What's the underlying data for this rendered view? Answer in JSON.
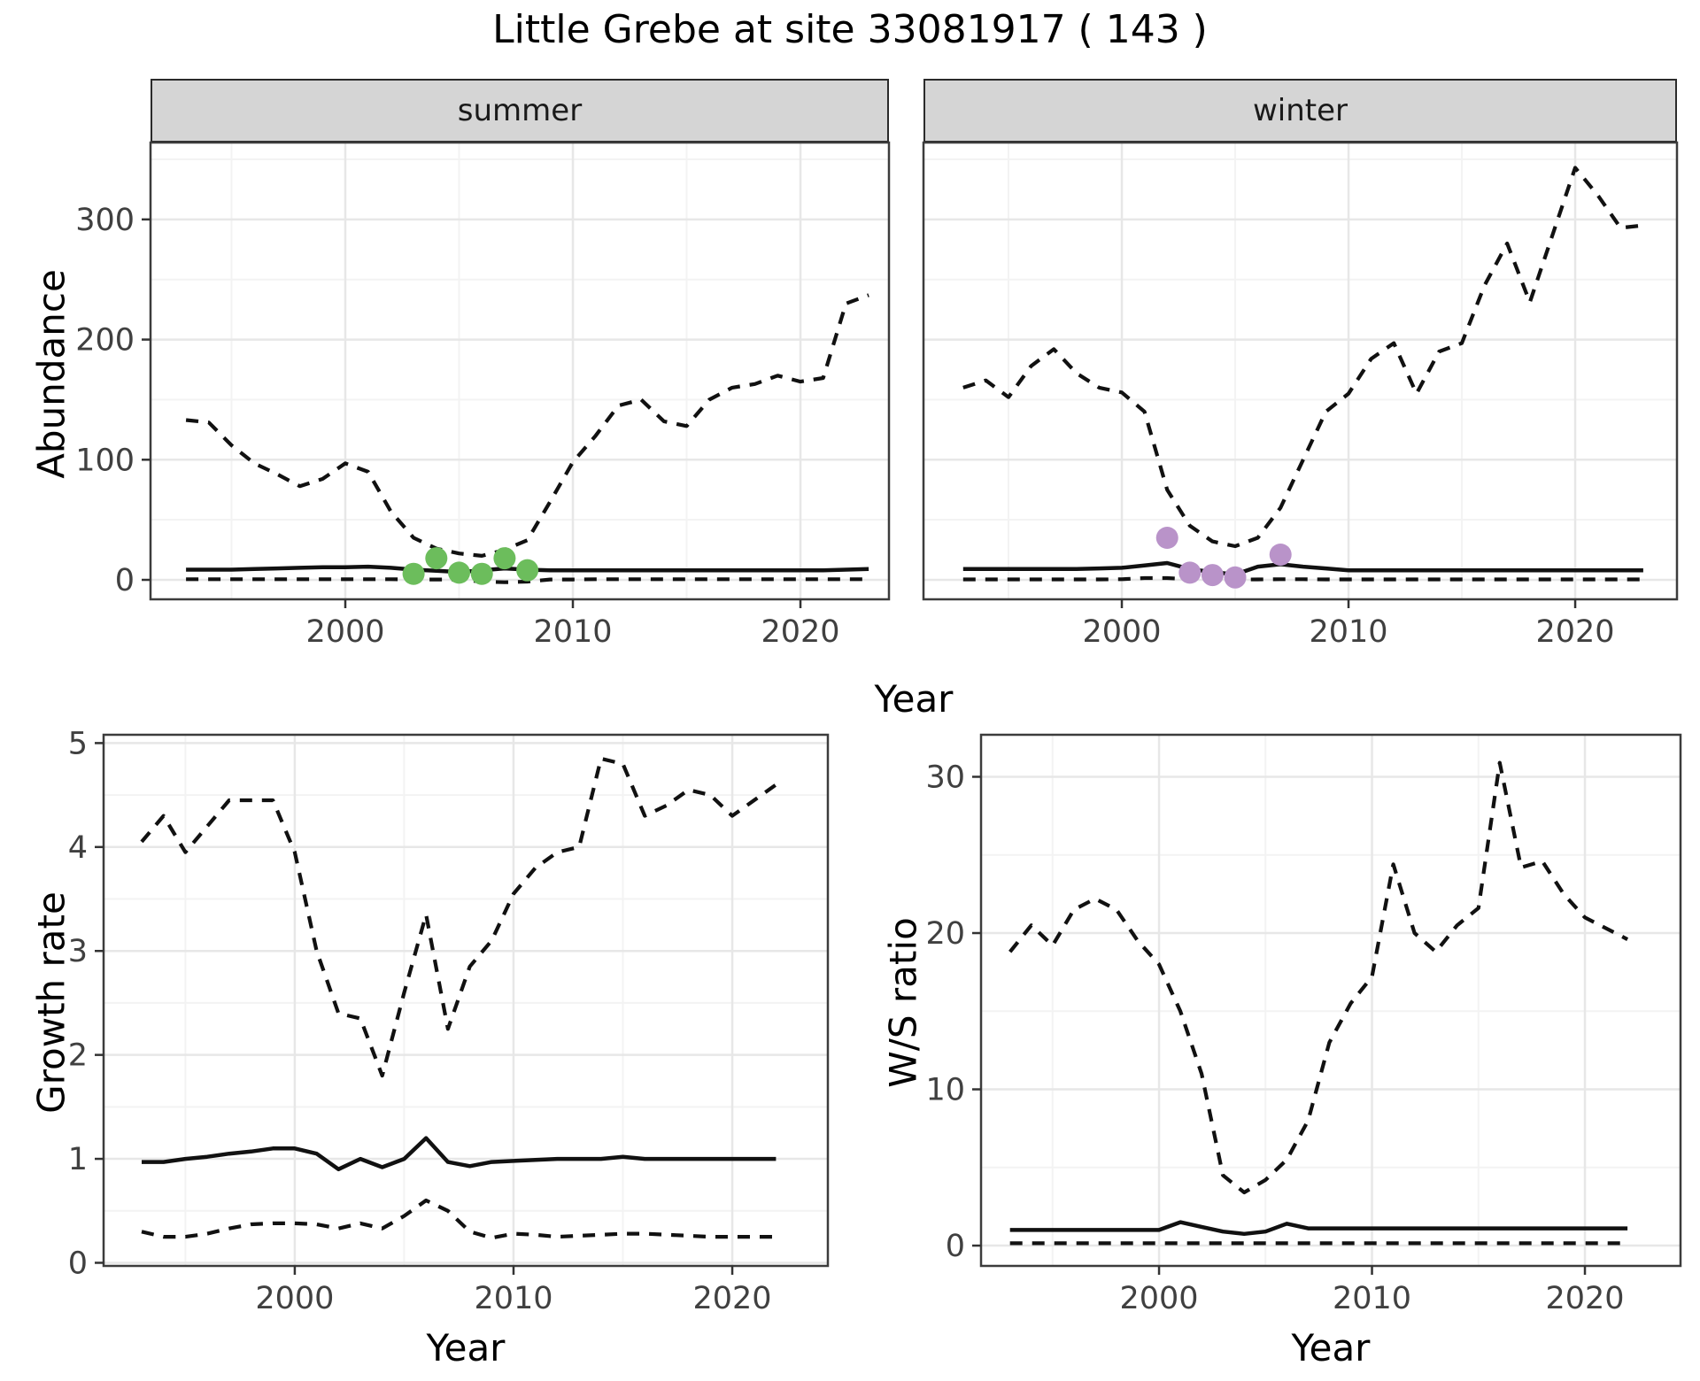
{
  "title": "Little Grebe at site 33081917 ( 143 )",
  "labels": {
    "abundance": "Abundance",
    "growth_rate": "Growth rate",
    "ws_ratio": "W/S ratio",
    "year": "Year"
  },
  "colors": {
    "line": "#111111",
    "summer_points": "#6cbd5c",
    "winter_points": "#b993c9",
    "grid_major": "#e7e7e7",
    "grid_minor": "#f3f3f3",
    "strip_fill": "#d5d5d5",
    "panel_border": "#3c3c3c",
    "tick_text": "#404040"
  },
  "chart_data": [
    {
      "id": "summer",
      "type": "line",
      "facet_label": "summer",
      "xlabel": "Year",
      "ylabel": "Abundance",
      "xlim": [
        1991.44,
        2023.89
      ],
      "ylim": [
        -16.2,
        364.0
      ],
      "xticks": {
        "major": [
          2000,
          2010,
          2020
        ],
        "minor": [
          1995,
          2005,
          2015
        ],
        "labels": [
          "2000",
          "2010",
          "2020"
        ]
      },
      "yticks": {
        "major": [
          0,
          100,
          200,
          300
        ],
        "minor": [
          50,
          150,
          250,
          350
        ],
        "labels": [
          "0",
          "100",
          "200",
          "300"
        ],
        "show_labels": true
      },
      "x": [
        1993,
        1994,
        1995,
        1996,
        1997,
        1998,
        1999,
        2000,
        2001,
        2002,
        2003,
        2004,
        2005,
        2006,
        2007,
        2008,
        2009,
        2010,
        2011,
        2012,
        2013,
        2014,
        2015,
        2016,
        2017,
        2018,
        2019,
        2020,
        2021,
        2022,
        2023
      ],
      "series": [
        {
          "name": "upper_ci",
          "linetype": "dashed",
          "values": [
            133,
            131,
            112,
            97,
            88,
            78,
            84,
            97,
            90,
            57,
            35,
            26,
            22,
            20,
            25,
            33,
            65,
            98,
            120,
            145,
            150,
            132,
            128,
            150,
            160,
            163,
            170,
            165,
            168,
            230,
            237
          ]
        },
        {
          "name": "median",
          "linetype": "solid",
          "values": [
            8.5,
            8.5,
            8.5,
            9,
            9.5,
            10,
            10.5,
            10.5,
            11,
            10,
            8.5,
            7.5,
            6.5,
            8,
            9.5,
            8.5,
            8,
            8,
            8,
            8,
            8,
            8,
            8,
            8,
            8,
            8,
            8,
            8,
            8,
            8.5,
            9
          ]
        },
        {
          "name": "lower_ci",
          "linetype": "dashed",
          "values": [
            0.5,
            0.5,
            0.5,
            0.5,
            0.5,
            0.5,
            0.5,
            0.5,
            0.5,
            0.5,
            0.3,
            0.3,
            0.3,
            -1.5,
            -2,
            -1.5,
            0.3,
            0.3,
            0.5,
            0.5,
            0.5,
            0.5,
            0.5,
            0.5,
            0.5,
            0.5,
            0.5,
            0.5,
            0.5,
            0.5,
            0.5
          ]
        }
      ],
      "points": {
        "name": "observed_counts",
        "color": "#6cbd5c",
        "data": [
          [
            2003,
            5
          ],
          [
            2004,
            18
          ],
          [
            2005,
            6
          ],
          [
            2006,
            5
          ],
          [
            2007,
            18
          ],
          [
            2008,
            8
          ]
        ]
      }
    },
    {
      "id": "winter",
      "type": "line",
      "facet_label": "winter",
      "xlabel": "Year",
      "ylabel": "Abundance",
      "xlim": [
        1991.25,
        2024.49
      ],
      "ylim": [
        -16.2,
        364.0
      ],
      "xticks": {
        "major": [
          2000,
          2010,
          2020
        ],
        "minor": [
          1995,
          2005,
          2015
        ],
        "labels": [
          "2000",
          "2010",
          "2020"
        ]
      },
      "yticks": {
        "major": [
          0,
          100,
          200,
          300
        ],
        "minor": [
          50,
          150,
          250,
          350
        ],
        "labels": [
          "0",
          "100",
          "200",
          "300"
        ],
        "show_labels": false
      },
      "x": [
        1993,
        1994,
        1995,
        1996,
        1997,
        1998,
        1999,
        2000,
        2001,
        2002,
        2003,
        2004,
        2005,
        2006,
        2007,
        2008,
        2009,
        2010,
        2011,
        2012,
        2013,
        2014,
        2015,
        2016,
        2017,
        2018,
        2019,
        2020,
        2021,
        2022,
        2023
      ],
      "series": [
        {
          "name": "upper_ci",
          "linetype": "dashed",
          "values": [
            160,
            166,
            152,
            178,
            192,
            172,
            160,
            156,
            140,
            75,
            45,
            32,
            28,
            35,
            60,
            100,
            140,
            155,
            184,
            197,
            155,
            190,
            197,
            245,
            280,
            231,
            287,
            343,
            320,
            293,
            295
          ]
        },
        {
          "name": "median",
          "linetype": "solid",
          "values": [
            9,
            9,
            9,
            9,
            9,
            9,
            9.5,
            10,
            12,
            14,
            9,
            6.5,
            4.5,
            11,
            13,
            11,
            9.5,
            8,
            8,
            8,
            8,
            8,
            8,
            8,
            8,
            8,
            8,
            8,
            8,
            8,
            8
          ]
        },
        {
          "name": "lower_ci",
          "linetype": "dashed",
          "values": [
            0.4,
            0.4,
            0.4,
            0.4,
            0.4,
            0.4,
            0.4,
            0.5,
            1.5,
            1.5,
            0.5,
            0.3,
            0.2,
            0.4,
            0.5,
            0.5,
            0.4,
            0.4,
            0.4,
            0.4,
            0.4,
            0.4,
            0.4,
            0.4,
            0.4,
            0.4,
            0.4,
            0.4,
            0.4,
            0.4,
            0.4
          ]
        }
      ],
      "points": {
        "name": "observed_counts",
        "color": "#b993c9",
        "data": [
          [
            2002,
            35
          ],
          [
            2003,
            6
          ],
          [
            2004,
            4
          ],
          [
            2005,
            2
          ],
          [
            2007,
            21
          ]
        ]
      }
    },
    {
      "id": "growth",
      "type": "line",
      "facet_label": "",
      "xlabel": "Year",
      "ylabel": "Growth rate",
      "xlim": [
        1991.26,
        2024.37
      ],
      "ylim": [
        -0.03,
        5.08
      ],
      "xticks": {
        "major": [
          2000,
          2010,
          2020
        ],
        "minor": [
          1995,
          2005,
          2015
        ],
        "labels": [
          "2000",
          "2010",
          "2020"
        ]
      },
      "yticks": {
        "major": [
          0,
          1,
          2,
          3,
          4,
          5
        ],
        "minor": [
          0.5,
          1.5,
          2.5,
          3.5,
          4.5
        ],
        "labels": [
          "0",
          "1",
          "2",
          "3",
          "4",
          "5"
        ],
        "show_labels": true
      },
      "x": [
        1993,
        1994,
        1995,
        1996,
        1997,
        1998,
        1999,
        2000,
        2001,
        2002,
        2003,
        2004,
        2005,
        2006,
        2007,
        2008,
        2009,
        2010,
        2011,
        2012,
        2013,
        2014,
        2015,
        2016,
        2017,
        2018,
        2019,
        2020,
        2021,
        2022
      ],
      "series": [
        {
          "name": "upper_ci",
          "linetype": "dashed",
          "values": [
            4.05,
            4.3,
            3.95,
            4.2,
            4.45,
            4.45,
            4.45,
            3.95,
            3.0,
            2.4,
            2.35,
            1.8,
            2.6,
            3.35,
            2.25,
            2.85,
            3.1,
            3.55,
            3.8,
            3.95,
            4.0,
            4.85,
            4.8,
            4.3,
            4.4,
            4.55,
            4.5,
            4.3,
            4.45,
            4.6
          ]
        },
        {
          "name": "median",
          "linetype": "solid",
          "values": [
            0.97,
            0.97,
            1.0,
            1.02,
            1.05,
            1.07,
            1.1,
            1.1,
            1.05,
            0.9,
            1.0,
            0.92,
            1.0,
            1.2,
            0.97,
            0.93,
            0.97,
            0.98,
            0.99,
            1.0,
            1.0,
            1.0,
            1.02,
            1.0,
            1.0,
            1.0,
            1.0,
            1.0,
            1.0,
            1.0
          ]
        },
        {
          "name": "lower_ci",
          "linetype": "dashed",
          "values": [
            0.3,
            0.25,
            0.25,
            0.28,
            0.33,
            0.37,
            0.38,
            0.38,
            0.37,
            0.33,
            0.38,
            0.33,
            0.45,
            0.6,
            0.5,
            0.3,
            0.24,
            0.28,
            0.27,
            0.25,
            0.26,
            0.27,
            0.28,
            0.28,
            0.27,
            0.26,
            0.25,
            0.25,
            0.25,
            0.25
          ]
        }
      ],
      "points": null
    },
    {
      "id": "ws",
      "type": "line",
      "facet_label": "",
      "xlabel": "Year",
      "ylabel": "W/S ratio",
      "xlim": [
        1991.64,
        2024.49
      ],
      "ylim": [
        -1.3,
        32.69
      ],
      "xticks": {
        "major": [
          2000,
          2010,
          2020
        ],
        "minor": [
          1995,
          2005,
          2015
        ],
        "labels": [
          "2000",
          "2010",
          "2020"
        ]
      },
      "yticks": {
        "major": [
          0,
          10,
          20,
          30
        ],
        "minor": [
          5,
          15,
          25
        ],
        "labels": [
          "0",
          "10",
          "20",
          "30"
        ],
        "show_labels": true
      },
      "x": [
        1993,
        1994,
        1995,
        1996,
        1997,
        1998,
        1999,
        2000,
        2001,
        2002,
        2003,
        2004,
        2005,
        2006,
        2007,
        2008,
        2009,
        2010,
        2011,
        2012,
        2013,
        2014,
        2015,
        2016,
        2017,
        2018,
        2019,
        2020,
        2021,
        2022
      ],
      "series": [
        {
          "name": "upper_ci",
          "linetype": "dashed",
          "values": [
            18.8,
            20.5,
            19.2,
            21.5,
            22.2,
            21.5,
            19.5,
            18.0,
            15.0,
            11.0,
            4.5,
            3.4,
            4.2,
            5.5,
            8.0,
            13.0,
            15.5,
            17.2,
            24.4,
            20.0,
            18.8,
            20.5,
            21.6,
            30.9,
            24.2,
            24.6,
            22.5,
            21.0,
            20.3,
            19.6
          ]
        },
        {
          "name": "median",
          "linetype": "solid",
          "values": [
            1.0,
            1.0,
            1.0,
            1.0,
            1.0,
            1.0,
            1.0,
            1.0,
            1.5,
            1.2,
            0.9,
            0.75,
            0.9,
            1.4,
            1.1,
            1.1,
            1.1,
            1.1,
            1.1,
            1.1,
            1.1,
            1.1,
            1.1,
            1.1,
            1.1,
            1.1,
            1.1,
            1.1,
            1.1,
            1.1
          ]
        },
        {
          "name": "lower_ci",
          "linetype": "dashed",
          "values": [
            0.15,
            0.15,
            0.15,
            0.15,
            0.15,
            0.15,
            0.15,
            0.15,
            0.15,
            0.15,
            0.15,
            0.15,
            0.15,
            0.15,
            0.15,
            0.15,
            0.15,
            0.15,
            0.15,
            0.15,
            0.15,
            0.15,
            0.15,
            0.15,
            0.15,
            0.15,
            0.15,
            0.15,
            0.15,
            0.15
          ]
        }
      ],
      "points": null
    }
  ]
}
